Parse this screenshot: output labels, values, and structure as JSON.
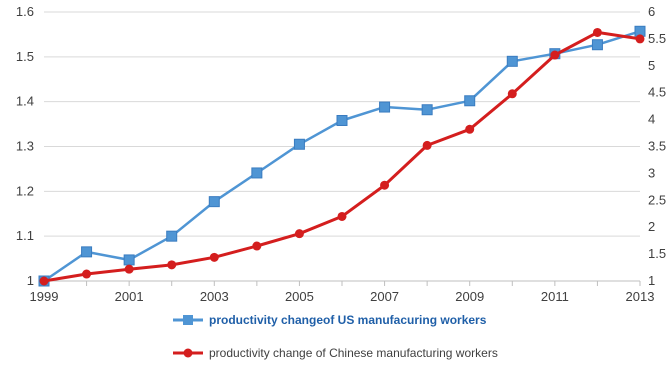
{
  "chart_data": {
    "type": "line",
    "title": "",
    "xlabel": "",
    "ylabel": "",
    "x": [
      1999,
      2000,
      2001,
      2002,
      2003,
      2004,
      2005,
      2006,
      2007,
      2008,
      2009,
      2010,
      2011,
      2012,
      2013
    ],
    "x_tick_labels": [
      "1999",
      "2001",
      "2003",
      "2005",
      "2007",
      "2009",
      "2011",
      "2013"
    ],
    "y_left": {
      "lim": [
        1,
        1.6
      ],
      "ticks": [
        "1",
        "1.1",
        "1.2",
        "1.3",
        "1.4",
        "1.5",
        "1.6"
      ]
    },
    "y_right": {
      "lim": [
        1,
        6
      ],
      "ticks": [
        "1",
        "1.5",
        "2",
        "2.5",
        "3",
        "3.5",
        "4",
        "4.5",
        "5",
        "5.5",
        "6"
      ]
    },
    "grid": true,
    "legend_position": "bottom",
    "series": [
      {
        "name": "productivity changeof US manufacuring workers",
        "axis": "left",
        "color": "#4f95d4",
        "marker": "square",
        "values": [
          1.0,
          1.065,
          1.047,
          1.1,
          1.177,
          1.241,
          1.305,
          1.358,
          1.388,
          1.382,
          1.402,
          1.49,
          1.507,
          1.527,
          1.557
        ]
      },
      {
        "name": "productivity change of Chinese manufacturing workers",
        "axis": "right",
        "color": "#d41e1e",
        "marker": "circle",
        "values": [
          1.0,
          1.13,
          1.22,
          1.3,
          1.44,
          1.65,
          1.88,
          2.2,
          2.78,
          3.52,
          3.82,
          4.48,
          5.2,
          5.62,
          5.5
        ]
      }
    ]
  }
}
